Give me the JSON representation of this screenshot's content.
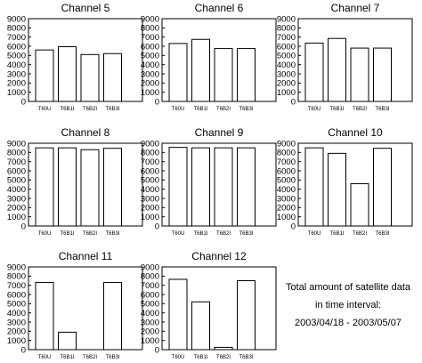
{
  "chart_data": [
    {
      "type": "bar",
      "title": "Channel 5",
      "categories": [
        "T60U",
        "T6B1I",
        "T6B2I",
        "T6B3I"
      ],
      "values": [
        5600,
        5950,
        5100,
        5200
      ],
      "ylim": [
        0,
        9000
      ],
      "yticks": [
        0,
        1000,
        2000,
        3000,
        4000,
        5000,
        6000,
        7000,
        8000,
        9000
      ]
    },
    {
      "type": "bar",
      "title": "Channel 6",
      "categories": [
        "T60U",
        "T6B1I",
        "T6B2I",
        "T6B3I"
      ],
      "values": [
        6300,
        6750,
        5750,
        5750
      ],
      "ylim": [
        0,
        9000
      ],
      "yticks": [
        0,
        1000,
        2000,
        3000,
        4000,
        5000,
        6000,
        7000,
        8000,
        9000
      ]
    },
    {
      "type": "bar",
      "title": "Channel 7",
      "categories": [
        "T60U",
        "T6B1I",
        "T6B2I",
        "T6B3I"
      ],
      "values": [
        6350,
        6850,
        5800,
        5800
      ],
      "ylim": [
        0,
        9000
      ],
      "yticks": [
        0,
        1000,
        2000,
        3000,
        4000,
        5000,
        6000,
        7000,
        8000,
        9000
      ]
    },
    {
      "type": "bar",
      "title": "Channel 8",
      "categories": [
        "T60U",
        "T6B1I",
        "T6B2I",
        "T6B3I"
      ],
      "values": [
        8500,
        8500,
        8300,
        8450
      ],
      "ylim": [
        0,
        9000
      ],
      "yticks": [
        0,
        1000,
        2000,
        3000,
        4000,
        5000,
        6000,
        7000,
        8000,
        9000
      ]
    },
    {
      "type": "bar",
      "title": "Channel 9",
      "categories": [
        "T60U",
        "T6B1I",
        "T6B2I",
        "T6B3I"
      ],
      "values": [
        8550,
        8500,
        8500,
        8500
      ],
      "ylim": [
        0,
        9000
      ],
      "yticks": [
        0,
        1000,
        2000,
        3000,
        4000,
        5000,
        6000,
        7000,
        8000,
        9000
      ]
    },
    {
      "type": "bar",
      "title": "Channel 10",
      "categories": [
        "T60U",
        "T6B1I",
        "T6B2I",
        "T6B3I"
      ],
      "values": [
        8500,
        7900,
        4600,
        8450
      ],
      "ylim": [
        0,
        9000
      ],
      "yticks": [
        0,
        1000,
        2000,
        3000,
        4000,
        5000,
        6000,
        7000,
        8000,
        9000
      ]
    },
    {
      "type": "bar",
      "title": "Channel 11",
      "categories": [
        "T60U",
        "T6B1I",
        "T6B2I",
        "T6B3I"
      ],
      "values": [
        7300,
        1900,
        0,
        7300
      ],
      "ylim": [
        0,
        9000
      ],
      "yticks": [
        0,
        1000,
        2000,
        3000,
        4000,
        5000,
        6000,
        7000,
        8000,
        9000
      ]
    },
    {
      "type": "bar",
      "title": "Channel 12",
      "categories": [
        "T60U",
        "T6B1I",
        "T6B2I",
        "T6B3I"
      ],
      "values": [
        7650,
        5200,
        250,
        7500
      ],
      "ylim": [
        0,
        9000
      ],
      "yticks": [
        0,
        1000,
        2000,
        3000,
        4000,
        5000,
        6000,
        7000,
        8000,
        9000
      ]
    }
  ],
  "note": {
    "line1": "Total amount of satellite data",
    "line2": "in time interval:",
    "line3": "2003/04/18 - 2003/05/07"
  }
}
